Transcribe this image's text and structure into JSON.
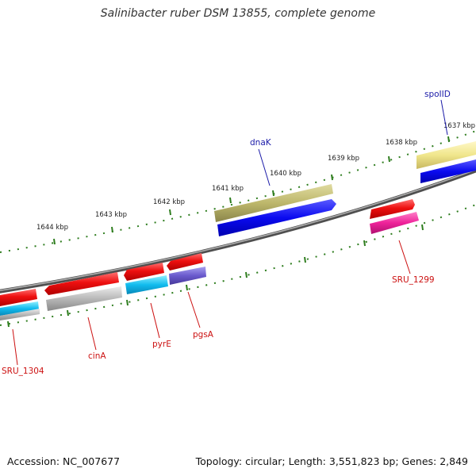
{
  "title": "Salinibacter ruber DSM 13855, complete genome",
  "footer": {
    "accession": "Accession: NC_007677",
    "summary": "Topology: circular; Length: 3,551,823 bp; Genes: 2,849"
  },
  "ticks": [
    "1637 kbp",
    "1638 kbp",
    "1639 kbp",
    "1640 kbp",
    "1641 kbp",
    "1642 kbp",
    "1643 kbp",
    "1644 kbp"
  ],
  "gene_labels": {
    "spoIID": "spoIID",
    "dnaK": "dnaK",
    "SRU_1299": "SRU_1299",
    "pgsA": "pgsA",
    "pyrE": "pyrE",
    "cinA": "cinA",
    "SRU_1304": "SRU_1304"
  },
  "colors": {
    "backbone": "#7f7f7f",
    "tick": "#2e7d1e",
    "label_blue": "#1a1aa8",
    "label_red": "#cc1111",
    "cds_red": "#ee1111",
    "gene_blue": "#0a0af0",
    "gene_olive": "#bdb76b",
    "gene_yellow": "#f0e68c",
    "gene_magenta": "#ee2299",
    "gene_cyan": "#11bbee",
    "gene_grey": "#b8b8b8",
    "gene_purple": "#6a5acd"
  }
}
